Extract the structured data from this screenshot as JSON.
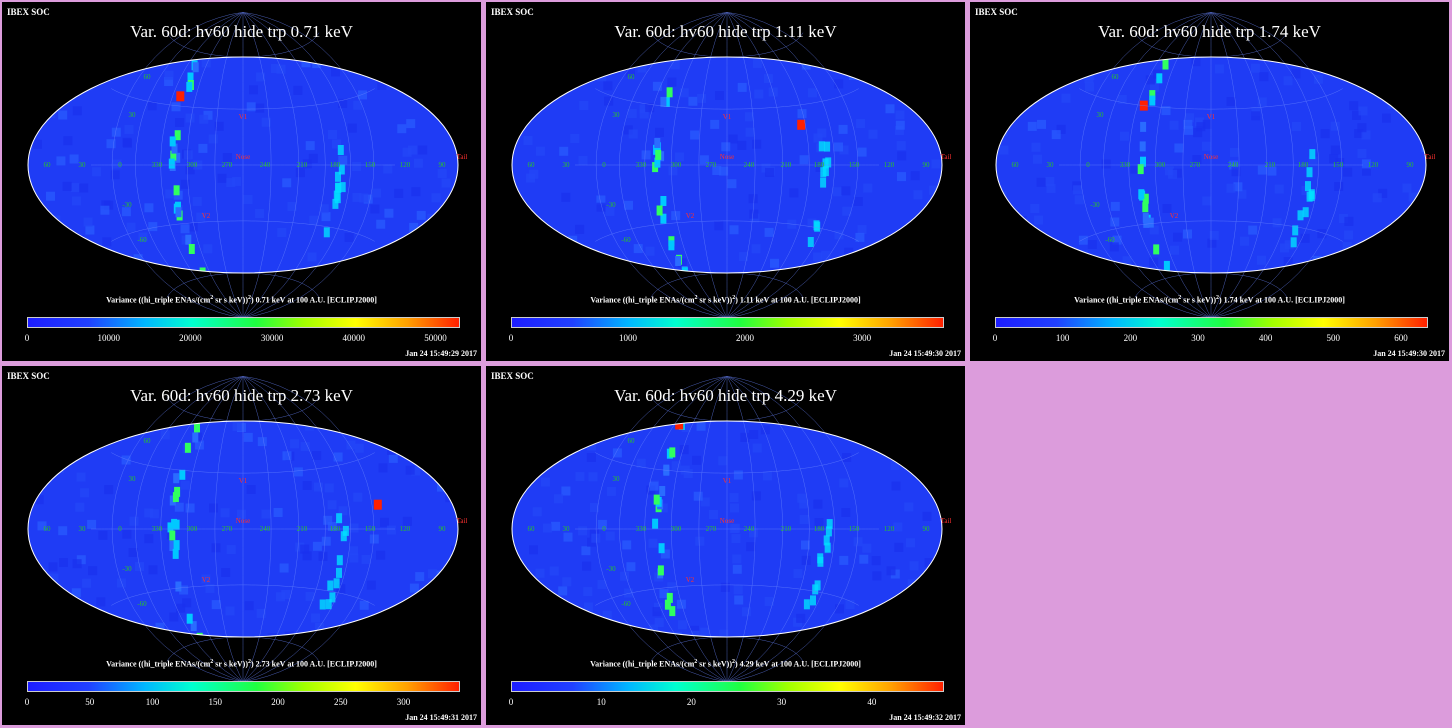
{
  "background_color": "#dc9cdc",
  "colormap": [
    "#1d1dff",
    "#2040ff",
    "#00b6ff",
    "#00ffd0",
    "#20ff40",
    "#a0ff00",
    "#ffff00",
    "#ffa000",
    "#ff2000"
  ],
  "panels": [
    {
      "soc_label": "IBEX SOC",
      "title": "Var. 60d: hv60 hide trp 0.71 keV",
      "cbar_prefix": "Variance ((hi_triple ENAs/(cm",
      "cbar_sup1": "2",
      "cbar_mid": " sr s keV))",
      "cbar_sup2": "2",
      "cbar_suffix": ") 0.71 keV at 100 A.U. [ECLIPJ2000]",
      "timestamp": "Jan 24 15:49:29 2017",
      "ticks": [
        "0",
        "10000",
        "20000",
        "30000",
        "40000",
        "50000"
      ],
      "vmax": 53000
    },
    {
      "soc_label": "IBEX SOC",
      "title": "Var. 60d: hv60 hide trp 1.11 keV",
      "cbar_prefix": "Variance ((hi_triple ENAs/(cm",
      "cbar_sup1": "2",
      "cbar_mid": " sr s keV))",
      "cbar_sup2": "2",
      "cbar_suffix": ") 1.11 keV at 100 A.U. [ECLIPJ2000]",
      "timestamp": "Jan 24 15:49:30 2017",
      "ticks": [
        "0",
        "1000",
        "2000",
        "3000"
      ],
      "vmax": 3700
    },
    {
      "soc_label": "IBEX SOC",
      "title": "Var. 60d: hv60 hide trp 1.74 keV",
      "cbar_prefix": "Variance ((hi_triple ENAs/(cm",
      "cbar_sup1": "2",
      "cbar_mid": " sr s keV))",
      "cbar_sup2": "2",
      "cbar_suffix": ") 1.74 keV at 100 A.U. [ECLIPJ2000]",
      "timestamp": "Jan 24 15:49:30 2017",
      "ticks": [
        "0",
        "100",
        "200",
        "300",
        "400",
        "500",
        "600"
      ],
      "vmax": 640
    },
    {
      "soc_label": "IBEX SOC",
      "title": "Var. 60d: hv60 hide trp 2.73 keV",
      "cbar_prefix": "Variance ((hi_triple ENAs/(cm",
      "cbar_sup1": "2",
      "cbar_mid": " sr s keV))",
      "cbar_sup2": "2",
      "cbar_suffix": ") 2.73 keV at 100 A.U. [ECLIPJ2000]",
      "timestamp": "Jan 24 15:49:31 2017",
      "ticks": [
        "0",
        "50",
        "100",
        "150",
        "200",
        "250",
        "300"
      ],
      "vmax": 345
    },
    {
      "soc_label": "IBEX SOC",
      "title": "Var. 60d: hv60 hide trp 4.29 keV",
      "cbar_prefix": "Variance ((hi_triple ENAs/(cm",
      "cbar_sup1": "2",
      "cbar_mid": " sr s keV))",
      "cbar_sup2": "2",
      "cbar_suffix": ") 4.29 keV at 100 A.U. [ECLIPJ2000]",
      "timestamp": "Jan 24 15:49:32 2017",
      "ticks": [
        "0",
        "10",
        "20",
        "30",
        "40"
      ],
      "vmax": 48
    }
  ],
  "map_labels": {
    "nose": "Nose",
    "tail": "Tail",
    "v1": "V1",
    "v2": "V2",
    "lon_labels": [
      "60",
      "30",
      "0",
      "330",
      "300",
      "270",
      "240",
      "210",
      "180",
      "150",
      "120",
      "90"
    ],
    "lat_labels": [
      "60",
      "30",
      "-30",
      "-60"
    ]
  },
  "chart_data": [
    {
      "type": "heatmap",
      "title": "Var. 60d: hv60 hide trp 0.71 keV",
      "projection": "Hammer-Aitoff",
      "colorbar_label": "Variance ((hi_triple ENAs/(cm2 sr s keV))2) 0.71 keV at 100 A.U. [ECLIPJ2000]",
      "zlim": [
        0,
        53000
      ]
    },
    {
      "type": "heatmap",
      "title": "Var. 60d: hv60 hide trp 1.11 keV",
      "projection": "Hammer-Aitoff",
      "colorbar_label": "Variance ((hi_triple ENAs/(cm2 sr s keV))2) 1.11 keV at 100 A.U. [ECLIPJ2000]",
      "zlim": [
        0,
        3700
      ]
    },
    {
      "type": "heatmap",
      "title": "Var. 60d: hv60 hide trp 1.74 keV",
      "projection": "Hammer-Aitoff",
      "colorbar_label": "Variance ((hi_triple ENAs/(cm2 sr s keV))2) 1.74 keV at 100 A.U. [ECLIPJ2000]",
      "zlim": [
        0,
        640
      ]
    },
    {
      "type": "heatmap",
      "title": "Var. 60d: hv60 hide trp 2.73 keV",
      "projection": "Hammer-Aitoff",
      "colorbar_label": "Variance ((hi_triple ENAs/(cm2 sr s keV))2) 2.73 keV at 100 A.U. [ECLIPJ2000]",
      "zlim": [
        0,
        345
      ]
    },
    {
      "type": "heatmap",
      "title": "Var. 60d: hv60 hide trp 4.29 keV",
      "projection": "Hammer-Aitoff",
      "colorbar_label": "Variance ((hi_triple ENAs/(cm2 sr s keV))2) 4.29 keV at 100 A.U. [ECLIPJ2000]",
      "zlim": [
        0,
        48
      ]
    }
  ]
}
